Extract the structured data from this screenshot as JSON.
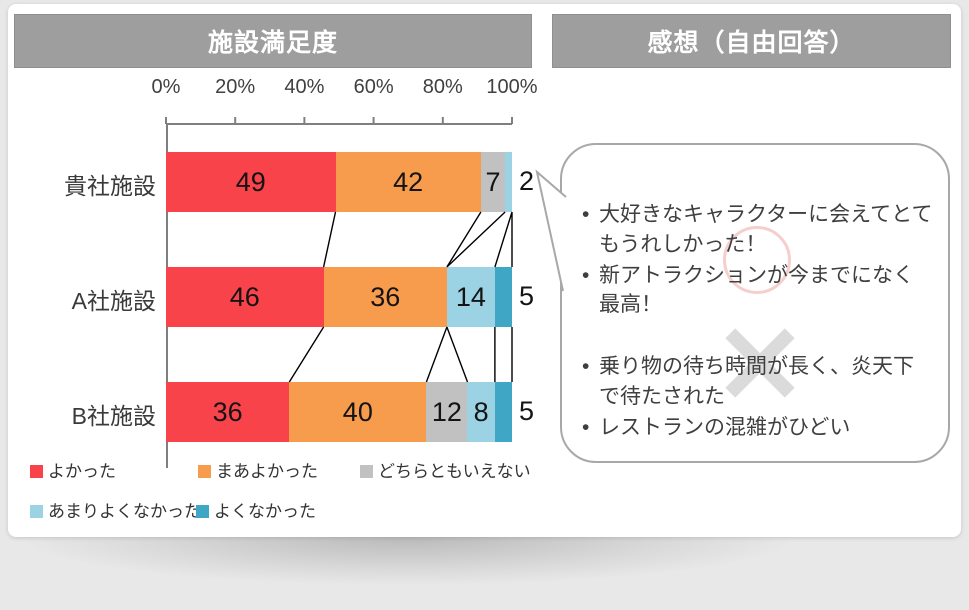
{
  "panels": {
    "chart_title": "施設満足度",
    "comments_title": "感想（自由回答）"
  },
  "chart_data": {
    "type": "bar",
    "stacked": true,
    "orientation": "horizontal",
    "title": "施設満足度",
    "categories": [
      "貴社施設",
      "A社施設",
      "B社施設"
    ],
    "series": [
      {
        "name": "よかった",
        "color": "#F8434B",
        "values": [
          49,
          46,
          36
        ]
      },
      {
        "name": "まあよかった",
        "color": "#F79B4D",
        "values": [
          42,
          36,
          40
        ]
      },
      {
        "name": "どちらともいえない",
        "color": "#C1C1C1",
        "values": [
          7,
          0,
          12
        ]
      },
      {
        "name": "あまりよくなかった",
        "color": "#9BD2E4",
        "values": [
          2,
          14,
          8
        ]
      },
      {
        "name": "よくなかった",
        "color": "#3FA6C6",
        "values": [
          0,
          5,
          5
        ]
      }
    ],
    "x_ticks": [
      "0%",
      "20%",
      "40%",
      "60%",
      "80%",
      "100%"
    ],
    "xlim": [
      0,
      100
    ],
    "unit": "%",
    "legend_position": "bottom-left",
    "connector_lines": true
  },
  "comments": {
    "positive": [
      "大好きなキャラクターに会えてとてもうれしかった！",
      "新アトラクションが今までになく最高！"
    ],
    "negative": [
      "乗り物の待ち時間が長く、炎天下で待たされた",
      "レストランの混雑がひどい"
    ],
    "positive_mark": "maru-circle",
    "negative_mark": "batsu-cross"
  },
  "colors": {
    "header_bar": "#9E9E9E",
    "background": "#E8E8E8",
    "bubble_border": "#A8A8A8",
    "axis": "#7F7F7F",
    "connector": "#000000"
  }
}
